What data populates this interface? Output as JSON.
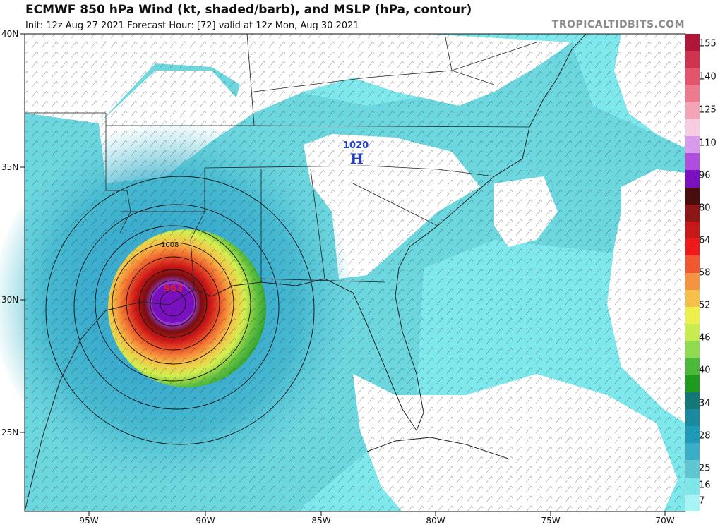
{
  "header": {
    "title": "ECMWF 850 hPa Wind (kt, shaded/barb), and MSLP (hPa, contour)",
    "subtitle": "Init: 12z Aug 27 2021   Forecast Hour: [72]   valid at 12z Mon, Aug 30 2021",
    "credit": "TROPICALTIDBITS.COM"
  },
  "axes": {
    "lat_labels": [
      "40N",
      "35N",
      "30N",
      "25N"
    ],
    "lon_labels": [
      "95W",
      "90W",
      "85W",
      "80W",
      "75W",
      "70W"
    ]
  },
  "map_labels": {
    "high_pressure_value": "1020",
    "high_pressure_letter": "H",
    "low_pressure_value": "963",
    "isobar_value": "1008"
  },
  "colorbar": {
    "labels": [
      "155",
      "140",
      "125",
      "110",
      "96",
      "80",
      "64",
      "58",
      "52",
      "46",
      "40",
      "34",
      "28",
      "25",
      "16",
      "7"
    ],
    "colors": [
      "#b0163a",
      "#d03250",
      "#e4546c",
      "#ee7a8e",
      "#f4a4b4",
      "#f6cce0",
      "#d89aec",
      "#b04ee0",
      "#7a10c0",
      "#4a0d0d",
      "#8e1616",
      "#c81818",
      "#ee1a1a",
      "#f25830",
      "#f59440",
      "#f7c048",
      "#eef04a",
      "#c8ec50",
      "#90dc50",
      "#4ab838",
      "#1e9a1e",
      "#147878",
      "#1a8aa0",
      "#1c9ab8",
      "#3aaec6",
      "#5ec6d0",
      "#7ee6e8",
      "#a8f4f4"
    ],
    "palette": {
      "calm": "#ffffff",
      "light": "#7fe8ec",
      "moderate": "#5fc9d6",
      "strong": "#3aaed0"
    }
  }
}
